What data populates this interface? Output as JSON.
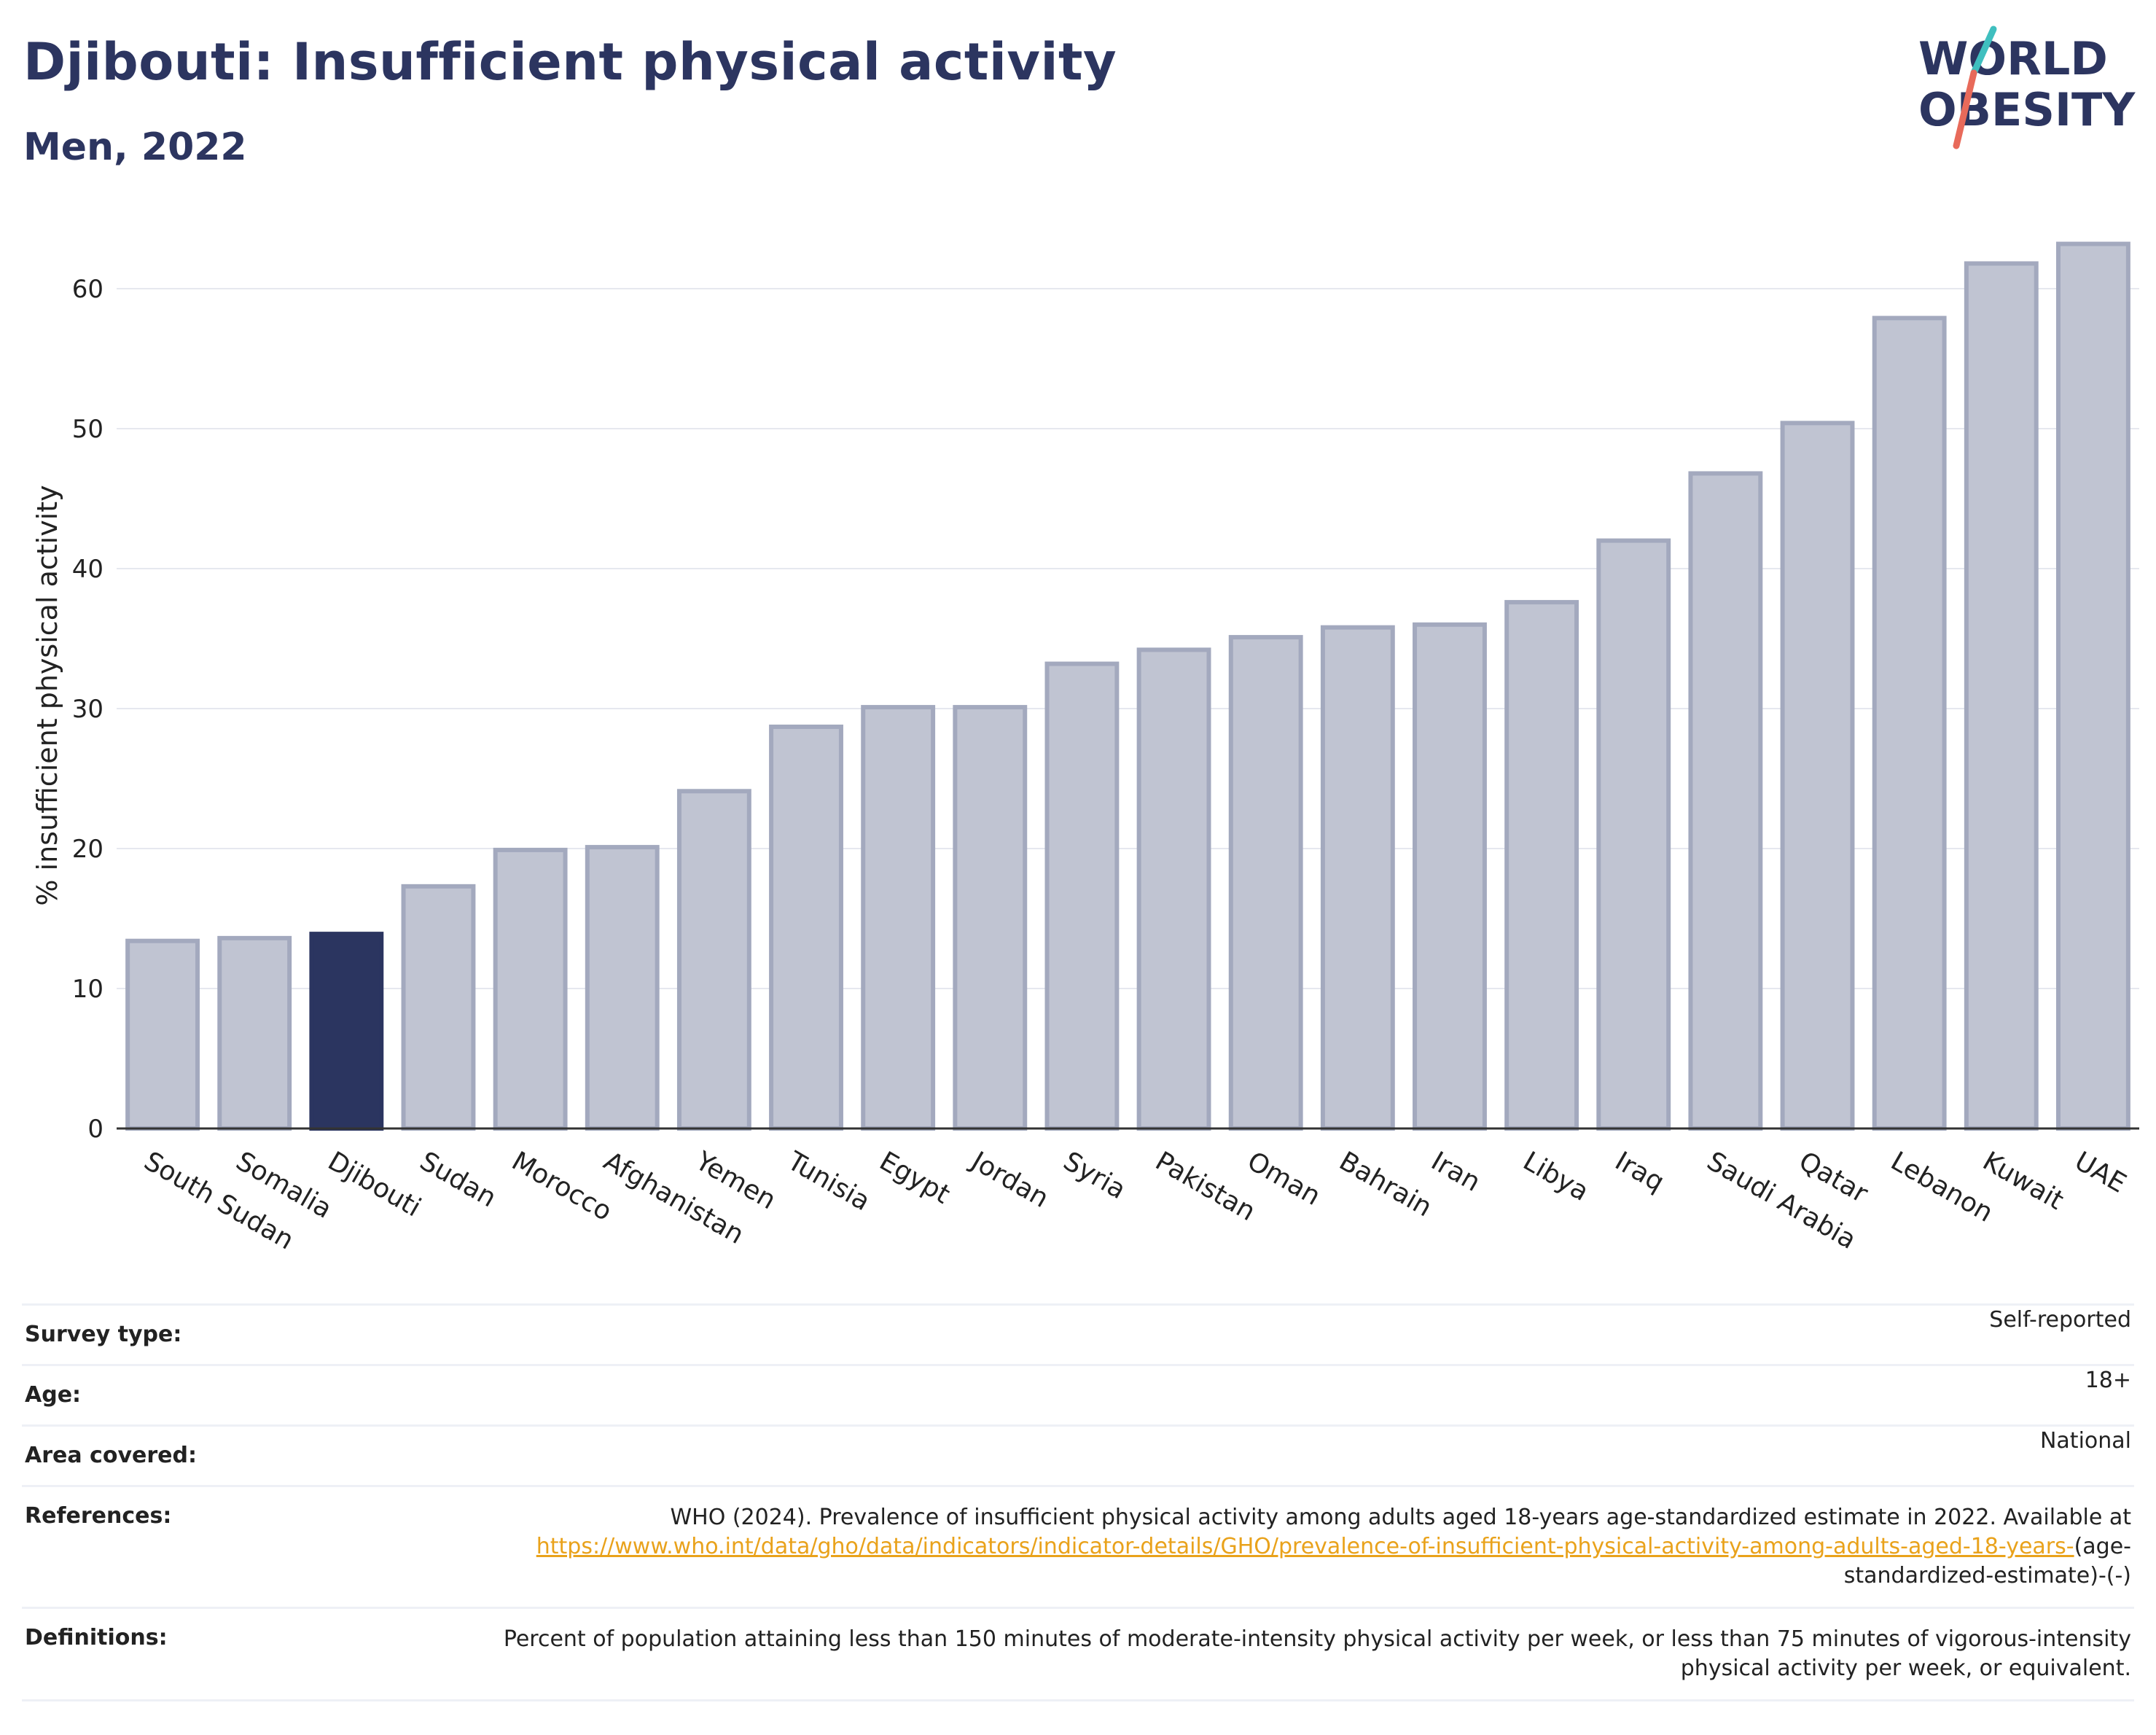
{
  "title": "Djibouti: Insufficient physical activity",
  "subtitle": "Men, 2022",
  "logo": {
    "line1": "WORLD",
    "line2": "OBESITY",
    "accent_teal": "#3fbfbf",
    "accent_coral": "#e86a5a"
  },
  "colors": {
    "highlight": "#2b3560",
    "bar": "#c0c4d2",
    "bar_edge": "#a3a9be",
    "grid": "#e6e8ef",
    "text_dark": "#2c3560"
  },
  "chart_data": {
    "type": "bar",
    "ylabel": "% insufficient physical activity",
    "ylim": [
      0,
      65
    ],
    "yticks": [
      0,
      10,
      20,
      30,
      40,
      50,
      60
    ],
    "grid": true,
    "highlight": "Djibouti",
    "categories": [
      "South Sudan",
      "Somalia",
      "Djibouti",
      "Sudan",
      "Morocco",
      "Afghanistan",
      "Yemen",
      "Tunisia",
      "Egypt",
      "Jordan",
      "Syria",
      "Pakistan",
      "Oman",
      "Bahrain",
      "Iran",
      "Libya",
      "Iraq",
      "Saudi Arabia",
      "Qatar",
      "Lebanon",
      "Kuwait",
      "UAE"
    ],
    "values": [
      13.4,
      13.6,
      13.9,
      17.3,
      19.9,
      20.1,
      24.1,
      28.7,
      30.1,
      30.1,
      33.2,
      34.2,
      35.1,
      35.8,
      36.0,
      37.6,
      42.0,
      46.8,
      50.4,
      57.9,
      61.8,
      63.2
    ]
  },
  "info": {
    "survey_type_label": "Survey type:",
    "survey_type_value": "Self-reported",
    "age_label": "Age:",
    "age_value": "18+",
    "area_label": "Area covered:",
    "area_value": "National",
    "references_label": "References:",
    "references_text": "WHO (2024). Prevalence of insufficient physical activity among adults aged 18-years age-standardized estimate in 2022. Available at",
    "references_link": "https://www.who.int/data/gho/data/indicators/indicator-details/GHO/prevalence-of-insufficient-physical-activity-among-adults-aged-18-years-",
    "references_suffix": "(age-standardized-estimate)-(-)",
    "definitions_label": "Definitions:",
    "definitions_text": "Percent of population attaining less than 150 minutes of moderate-intensity physical activity per week, or less than 75 minutes of vigorous-intensity physical activity per week, or equivalent."
  }
}
